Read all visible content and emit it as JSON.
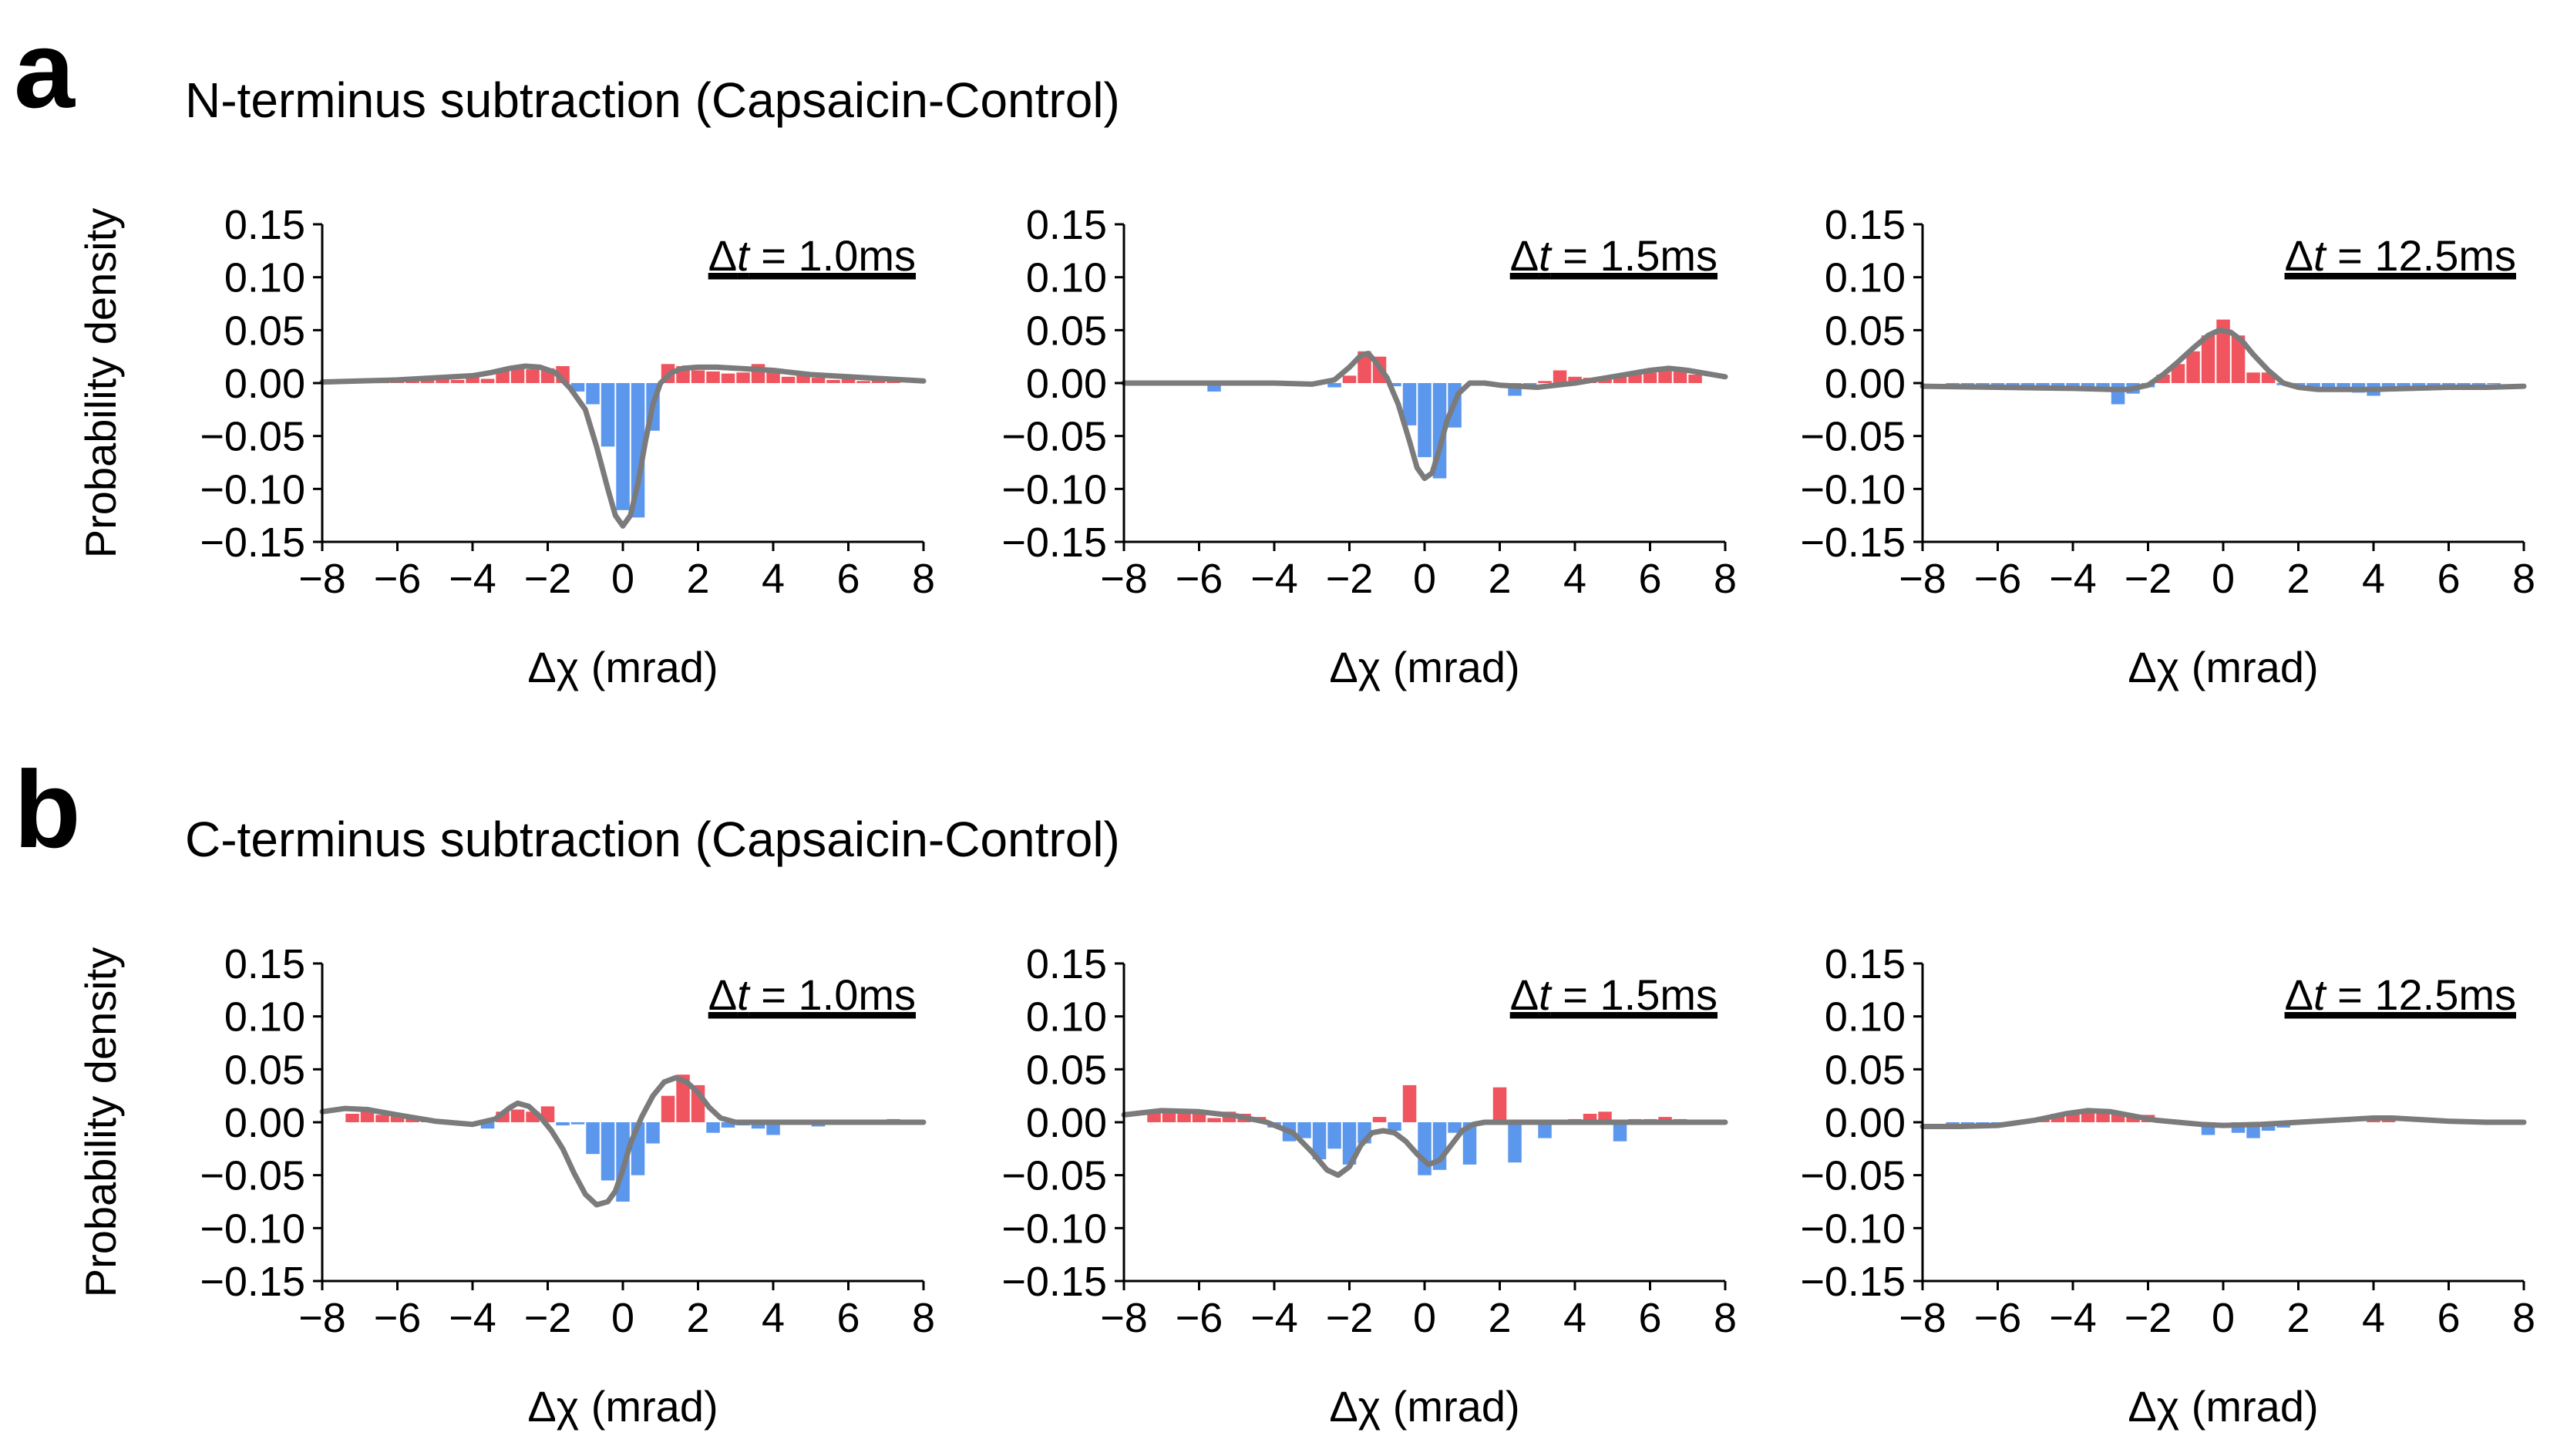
{
  "figure": {
    "panel_a": {
      "letter": "a",
      "title": "N-terminus subtraction (Capsaicin-Control)"
    },
    "panel_b": {
      "letter": "b",
      "title": "C-terminus subtraction (Capsaicin-Control)"
    }
  },
  "chart_data": [
    {
      "type": "bar",
      "panel": "a",
      "label": "Δt = 1.0ms",
      "annotation_prefix": "Δ",
      "annotation_var": "t",
      "annotation_value": " = 1.0ms",
      "xlabel": "Δχ (mrad)",
      "ylabel": "Probability density",
      "xlim": [
        -8,
        8
      ],
      "ylim": [
        -0.15,
        0.15
      ],
      "xticks": [
        -8,
        -6,
        -4,
        -2,
        0,
        2,
        4,
        6,
        8
      ],
      "xtick_labels": [
        "−8",
        "−6",
        "−4",
        "−2",
        "0",
        "2",
        "4",
        "6",
        "8"
      ],
      "yticks": [
        0.15,
        0.1,
        0.05,
        0.0,
        -0.05,
        -0.1,
        -0.15
      ],
      "ytick_labels": [
        "0.15",
        "0.10",
        "0.05",
        "0.00",
        "−0.05",
        "−0.10",
        "−0.15"
      ],
      "bin_width": 0.4,
      "bars": {
        "x": [
          -7.2,
          -6.8,
          -6.4,
          -6.0,
          -5.6,
          -5.2,
          -4.8,
          -4.4,
          -4.0,
          -3.6,
          -3.2,
          -2.8,
          -2.4,
          -2.0,
          -1.6,
          -1.2,
          -0.8,
          -0.4,
          0.0,
          0.4,
          0.8,
          1.2,
          1.6,
          2.0,
          2.4,
          2.8,
          3.2,
          3.6,
          4.0,
          4.4,
          4.8,
          5.2,
          5.6,
          6.0,
          6.4,
          6.8,
          7.2
        ],
        "y": [
          0.001,
          0.002,
          0.001,
          0.003,
          0.002,
          0.004,
          0.005,
          0.003,
          0.006,
          0.004,
          0.012,
          0.014,
          0.013,
          0.014,
          0.016,
          -0.008,
          -0.02,
          -0.06,
          -0.12,
          -0.127,
          -0.045,
          0.018,
          0.016,
          0.012,
          0.011,
          0.009,
          0.01,
          0.018,
          0.012,
          0.006,
          0.007,
          0.005,
          0.003,
          0.004,
          0.002,
          0.003,
          0.002
        ]
      },
      "curve": {
        "x": [
          -8,
          -7,
          -6,
          -5,
          -4,
          -3.5,
          -3,
          -2.6,
          -2.2,
          -1.8,
          -1.4,
          -1.0,
          -0.7,
          -0.4,
          -0.2,
          0.0,
          0.2,
          0.4,
          0.6,
          0.8,
          1.0,
          1.3,
          1.6,
          2.0,
          2.5,
          3.0,
          4.0,
          5.0,
          6.0,
          7.0,
          8.0
        ],
        "y": [
          0.001,
          0.002,
          0.003,
          0.005,
          0.007,
          0.01,
          0.014,
          0.016,
          0.015,
          0.01,
          -0.005,
          -0.025,
          -0.06,
          -0.1,
          -0.125,
          -0.135,
          -0.125,
          -0.095,
          -0.055,
          -0.02,
          0.0,
          0.01,
          0.014,
          0.015,
          0.015,
          0.014,
          0.012,
          0.008,
          0.006,
          0.004,
          0.002
        ]
      }
    },
    {
      "type": "bar",
      "panel": "a",
      "label": "Δt = 1.5ms",
      "annotation_prefix": "Δ",
      "annotation_var": "t",
      "annotation_value": " = 1.5ms",
      "xlabel": "Δχ (mrad)",
      "ylabel": "",
      "xlim": [
        -8,
        8
      ],
      "ylim": [
        -0.15,
        0.15
      ],
      "xticks": [
        -8,
        -6,
        -4,
        -2,
        0,
        2,
        4,
        6,
        8
      ],
      "xtick_labels": [
        "−8",
        "−6",
        "−4",
        "−2",
        "0",
        "2",
        "4",
        "6",
        "8"
      ],
      "yticks": [
        0.15,
        0.1,
        0.05,
        0.0,
        -0.05,
        -0.1,
        -0.15
      ],
      "ytick_labels": [
        "0.15",
        "0.10",
        "0.05",
        "0.00",
        "−0.05",
        "−0.10",
        "−0.15"
      ],
      "bin_width": 0.4,
      "bars": {
        "x": [
          -7.2,
          -6.8,
          -6.4,
          -6.0,
          -5.6,
          -5.2,
          -4.8,
          -4.4,
          -4.0,
          -3.6,
          -3.2,
          -2.8,
          -2.4,
          -2.0,
          -1.6,
          -1.2,
          -0.8,
          -0.4,
          0.0,
          0.4,
          0.8,
          1.2,
          1.6,
          2.0,
          2.4,
          2.8,
          3.2,
          3.6,
          4.0,
          4.4,
          4.8,
          5.2,
          5.6,
          6.0,
          6.4,
          6.8,
          7.2
        ],
        "y": [
          0.0,
          -0.001,
          0.0,
          -0.002,
          -0.008,
          -0.001,
          0.0,
          -0.001,
          0.0,
          0.0,
          0.0,
          -0.001,
          -0.004,
          0.007,
          0.03,
          0.025,
          -0.003,
          -0.04,
          -0.07,
          -0.09,
          -0.042,
          0.0,
          0.0,
          -0.002,
          -0.012,
          -0.003,
          0.002,
          0.012,
          0.006,
          0.005,
          0.006,
          0.008,
          0.009,
          0.01,
          0.012,
          0.011,
          0.008
        ]
      },
      "curve": {
        "x": [
          -8,
          -6,
          -4,
          -3,
          -2.4,
          -2.0,
          -1.7,
          -1.5,
          -1.3,
          -1.0,
          -0.7,
          -0.4,
          -0.2,
          0.0,
          0.2,
          0.4,
          0.6,
          0.9,
          1.2,
          1.6,
          2.0,
          3.0,
          4.0,
          5.0,
          6.0,
          6.5,
          7.0,
          8.0
        ],
        "y": [
          0.0,
          0.0,
          0.0,
          -0.001,
          0.003,
          0.015,
          0.026,
          0.028,
          0.02,
          0.005,
          -0.02,
          -0.055,
          -0.08,
          -0.09,
          -0.085,
          -0.062,
          -0.035,
          -0.01,
          0.0,
          0.0,
          -0.002,
          -0.004,
          0.0,
          0.006,
          0.012,
          0.014,
          0.012,
          0.006
        ]
      }
    },
    {
      "type": "bar",
      "panel": "a",
      "label": "Δt = 12.5ms",
      "annotation_prefix": "Δ",
      "annotation_var": "t",
      "annotation_value": " = 12.5ms",
      "xlabel": "Δχ (mrad)",
      "ylabel": "",
      "xlim": [
        -8,
        8
      ],
      "ylim": [
        -0.15,
        0.15
      ],
      "xticks": [
        -8,
        -6,
        -4,
        -2,
        0,
        2,
        4,
        6,
        8
      ],
      "xtick_labels": [
        "−8",
        "−6",
        "−4",
        "−2",
        "0",
        "2",
        "4",
        "6",
        "8"
      ],
      "yticks": [
        0.15,
        0.1,
        0.05,
        0.0,
        -0.05,
        -0.1,
        -0.15
      ],
      "ytick_labels": [
        "0.15",
        "0.10",
        "0.05",
        "0.00",
        "−0.05",
        "−0.10",
        "−0.15"
      ],
      "bin_width": 0.4,
      "bars": {
        "x": [
          -7.2,
          -6.8,
          -6.4,
          -6.0,
          -5.6,
          -5.2,
          -4.8,
          -4.4,
          -4.0,
          -3.6,
          -3.2,
          -2.8,
          -2.4,
          -2.0,
          -1.6,
          -1.2,
          -0.8,
          -0.4,
          0.0,
          0.4,
          0.8,
          1.2,
          1.6,
          2.0,
          2.4,
          2.8,
          3.2,
          3.6,
          4.0,
          4.4,
          4.8,
          5.2,
          5.6,
          6.0,
          6.4,
          6.8,
          7.2
        ],
        "y": [
          -0.002,
          -0.002,
          -0.003,
          -0.004,
          -0.003,
          -0.004,
          -0.005,
          -0.004,
          -0.003,
          -0.004,
          -0.005,
          -0.02,
          -0.01,
          -0.004,
          0.008,
          0.018,
          0.03,
          0.045,
          0.06,
          0.045,
          0.01,
          0.01,
          -0.002,
          -0.005,
          -0.006,
          -0.008,
          -0.007,
          -0.009,
          -0.012,
          -0.006,
          -0.005,
          -0.004,
          -0.005,
          -0.003,
          -0.004,
          -0.002,
          -0.001
        ]
      },
      "curve": {
        "x": [
          -8,
          -6,
          -4,
          -3,
          -2.5,
          -2.0,
          -1.6,
          -1.2,
          -0.8,
          -0.4,
          -0.1,
          0.2,
          0.5,
          0.8,
          1.2,
          1.6,
          2.0,
          2.5,
          3.0,
          4.0,
          5.0,
          6.0,
          7.0,
          8.0
        ],
        "y": [
          -0.003,
          -0.004,
          -0.005,
          -0.006,
          -0.006,
          -0.002,
          0.008,
          0.02,
          0.033,
          0.045,
          0.05,
          0.048,
          0.04,
          0.027,
          0.012,
          0.0,
          -0.004,
          -0.006,
          -0.006,
          -0.006,
          -0.005,
          -0.004,
          -0.004,
          -0.003
        ]
      }
    },
    {
      "type": "bar",
      "panel": "b",
      "label": "Δt = 1.0ms",
      "annotation_prefix": "Δ",
      "annotation_var": "t",
      "annotation_value": " = 1.0ms",
      "xlabel": "Δχ (mrad)",
      "ylabel": "Probability density",
      "xlim": [
        -8,
        8
      ],
      "ylim": [
        -0.15,
        0.15
      ],
      "xticks": [
        -8,
        -6,
        -4,
        -2,
        0,
        2,
        4,
        6,
        8
      ],
      "xtick_labels": [
        "−8",
        "−6",
        "−4",
        "−2",
        "0",
        "2",
        "4",
        "6",
        "8"
      ],
      "yticks": [
        0.15,
        0.1,
        0.05,
        0.0,
        -0.05,
        -0.1,
        -0.15
      ],
      "ytick_labels": [
        "0.15",
        "0.10",
        "0.05",
        "0.00",
        "−0.05",
        "−0.10",
        "−0.15"
      ],
      "bin_width": 0.4,
      "bars": {
        "x": [
          -7.2,
          -6.8,
          -6.4,
          -6.0,
          -5.6,
          -5.2,
          -4.8,
          -4.4,
          -4.0,
          -3.6,
          -3.2,
          -2.8,
          -2.4,
          -2.0,
          -1.6,
          -1.2,
          -0.8,
          -0.4,
          0.0,
          0.4,
          0.8,
          1.2,
          1.6,
          2.0,
          2.4,
          2.8,
          3.2,
          3.6,
          4.0,
          4.4,
          4.8,
          5.2,
          5.6,
          6.0,
          6.4,
          6.8,
          7.2
        ],
        "y": [
          0.008,
          0.01,
          0.007,
          0.008,
          0.004,
          0.002,
          0.001,
          0.0,
          -0.002,
          -0.006,
          0.01,
          0.012,
          0.01,
          0.015,
          -0.003,
          -0.002,
          -0.03,
          -0.055,
          -0.075,
          -0.05,
          -0.02,
          0.025,
          0.045,
          0.035,
          -0.01,
          -0.005,
          -0.003,
          -0.006,
          -0.012,
          0.0,
          -0.002,
          -0.004,
          0.002,
          -0.002,
          0.0,
          0.002,
          0.003
        ]
      },
      "curve": {
        "x": [
          -8,
          -7.4,
          -6.8,
          -6.0,
          -5.0,
          -4.0,
          -3.4,
          -3.0,
          -2.8,
          -2.5,
          -2.2,
          -1.9,
          -1.6,
          -1.3,
          -1.0,
          -0.7,
          -0.4,
          -0.2,
          0.0,
          0.2,
          0.5,
          0.8,
          1.1,
          1.4,
          1.7,
          2.0,
          2.3,
          2.6,
          3.0,
          3.5,
          4.0,
          5.0,
          6.0,
          7.0,
          8.0
        ],
        "y": [
          0.01,
          0.013,
          0.012,
          0.007,
          0.001,
          -0.002,
          0.003,
          0.014,
          0.018,
          0.015,
          0.005,
          -0.008,
          -0.025,
          -0.048,
          -0.068,
          -0.078,
          -0.075,
          -0.065,
          -0.045,
          -0.02,
          0.005,
          0.025,
          0.038,
          0.042,
          0.038,
          0.028,
          0.014,
          0.004,
          0.0,
          0.0,
          0.0,
          0.0,
          0.0,
          0.0,
          0.0
        ]
      }
    },
    {
      "type": "bar",
      "panel": "b",
      "label": "Δt = 1.5ms",
      "annotation_prefix": "Δ",
      "annotation_var": "t",
      "annotation_value": " = 1.5ms",
      "xlabel": "Δχ (mrad)",
      "ylabel": "",
      "xlim": [
        -8,
        8
      ],
      "ylim": [
        -0.15,
        0.15
      ],
      "xticks": [
        -8,
        -6,
        -4,
        -2,
        0,
        2,
        4,
        6,
        8
      ],
      "xtick_labels": [
        "−8",
        "−6",
        "−4",
        "−2",
        "0",
        "2",
        "4",
        "6",
        "8"
      ],
      "yticks": [
        0.15,
        0.1,
        0.05,
        0.0,
        -0.05,
        -0.1,
        -0.15
      ],
      "ytick_labels": [
        "0.15",
        "0.10",
        "0.05",
        "0.00",
        "−0.05",
        "−0.10",
        "−0.15"
      ],
      "bin_width": 0.4,
      "bars": {
        "x": [
          -7.2,
          -6.8,
          -6.4,
          -6.0,
          -5.6,
          -5.2,
          -4.8,
          -4.4,
          -4.0,
          -3.6,
          -3.2,
          -2.8,
          -2.4,
          -2.0,
          -1.6,
          -1.2,
          -0.8,
          -0.4,
          0.0,
          0.4,
          0.8,
          1.2,
          1.6,
          2.0,
          2.4,
          2.8,
          3.2,
          3.6,
          4.0,
          4.4,
          4.8,
          5.2,
          5.6,
          6.0,
          6.4,
          6.8,
          7.2
        ],
        "y": [
          0.012,
          0.01,
          0.012,
          0.008,
          0.004,
          0.01,
          0.008,
          0.005,
          -0.005,
          -0.018,
          -0.015,
          -0.035,
          -0.025,
          -0.04,
          -0.02,
          0.005,
          -0.008,
          0.035,
          -0.05,
          -0.045,
          -0.01,
          -0.04,
          0.0,
          0.033,
          -0.038,
          0.0,
          -0.015,
          0.0,
          0.003,
          0.008,
          0.01,
          -0.018,
          0.003,
          0.003,
          0.005,
          0.003,
          0.002
        ]
      },
      "curve": {
        "x": [
          -8,
          -7,
          -6,
          -5,
          -4.2,
          -3.5,
          -3.0,
          -2.6,
          -2.3,
          -2.0,
          -1.7,
          -1.4,
          -1.1,
          -0.8,
          -0.5,
          -0.2,
          0.1,
          0.4,
          0.7,
          1.0,
          1.3,
          1.6,
          2.0,
          2.5,
          3.0,
          4.0,
          5.0,
          6.0,
          7.0,
          8.0
        ],
        "y": [
          0.007,
          0.011,
          0.01,
          0.006,
          0.0,
          -0.01,
          -0.028,
          -0.045,
          -0.05,
          -0.042,
          -0.022,
          -0.01,
          -0.008,
          -0.01,
          -0.018,
          -0.03,
          -0.04,
          -0.036,
          -0.022,
          -0.008,
          -0.002,
          0.0,
          0.0,
          0.0,
          0.0,
          0.0,
          0.0,
          0.0,
          0.0,
          0.0
        ]
      }
    },
    {
      "type": "bar",
      "panel": "b",
      "label": "Δt = 12.5ms",
      "annotation_prefix": "Δ",
      "annotation_var": "t",
      "annotation_value": " = 12.5ms",
      "xlabel": "Δχ (mrad)",
      "ylabel": "",
      "xlim": [
        -8,
        8
      ],
      "ylim": [
        -0.15,
        0.15
      ],
      "xticks": [
        -8,
        -6,
        -4,
        -2,
        0,
        2,
        4,
        6,
        8
      ],
      "xtick_labels": [
        "−8",
        "−6",
        "−4",
        "−2",
        "0",
        "2",
        "4",
        "6",
        "8"
      ],
      "yticks": [
        0.15,
        0.1,
        0.05,
        0.0,
        -0.05,
        -0.1,
        -0.15
      ],
      "ytick_labels": [
        "0.15",
        "0.10",
        "0.05",
        "0.00",
        "−0.05",
        "−0.10",
        "−0.15"
      ],
      "bin_width": 0.4,
      "bars": {
        "x": [
          -7.2,
          -6.8,
          -6.4,
          -6.0,
          -5.6,
          -5.2,
          -4.8,
          -4.4,
          -4.0,
          -3.6,
          -3.2,
          -2.8,
          -2.4,
          -2.0,
          -1.6,
          -1.2,
          -0.8,
          -0.4,
          0.0,
          0.4,
          0.8,
          1.2,
          1.6,
          2.0,
          2.4,
          2.8,
          3.2,
          3.6,
          4.0,
          4.4,
          4.8,
          5.2,
          5.6,
          6.0,
          6.4,
          6.8,
          7.2
        ],
        "y": [
          -0.003,
          -0.002,
          -0.001,
          -0.002,
          0.0,
          0.002,
          0.003,
          0.008,
          0.01,
          0.01,
          0.008,
          0.009,
          0.005,
          0.007,
          0.0,
          0.0,
          0.0,
          -0.012,
          0.0,
          -0.01,
          -0.015,
          -0.008,
          -0.005,
          0.0,
          0.0,
          0.0,
          0.002,
          0.0,
          0.003,
          0.002,
          0.0,
          0.0,
          0.0,
          0.0,
          0.0,
          0.0,
          0.0
        ]
      },
      "curve": {
        "x": [
          -8,
          -7,
          -6,
          -5,
          -4.2,
          -3.6,
          -3.0,
          -2.4,
          -1.8,
          -1.2,
          -0.6,
          0.0,
          1.0,
          2.0,
          3.0,
          4.0,
          4.5,
          5.0,
          6.0,
          7.0,
          8.0
        ],
        "y": [
          -0.004,
          -0.004,
          -0.003,
          0.002,
          0.008,
          0.011,
          0.01,
          0.006,
          0.002,
          0.0,
          -0.002,
          -0.003,
          -0.002,
          0.0,
          0.002,
          0.004,
          0.004,
          0.003,
          0.001,
          0.0,
          0.0
        ]
      }
    }
  ],
  "colors": {
    "positive_bar": "#f0555f",
    "negative_bar": "#5c97ee",
    "curve": "#7b7b7b",
    "axis": "#000000"
  }
}
